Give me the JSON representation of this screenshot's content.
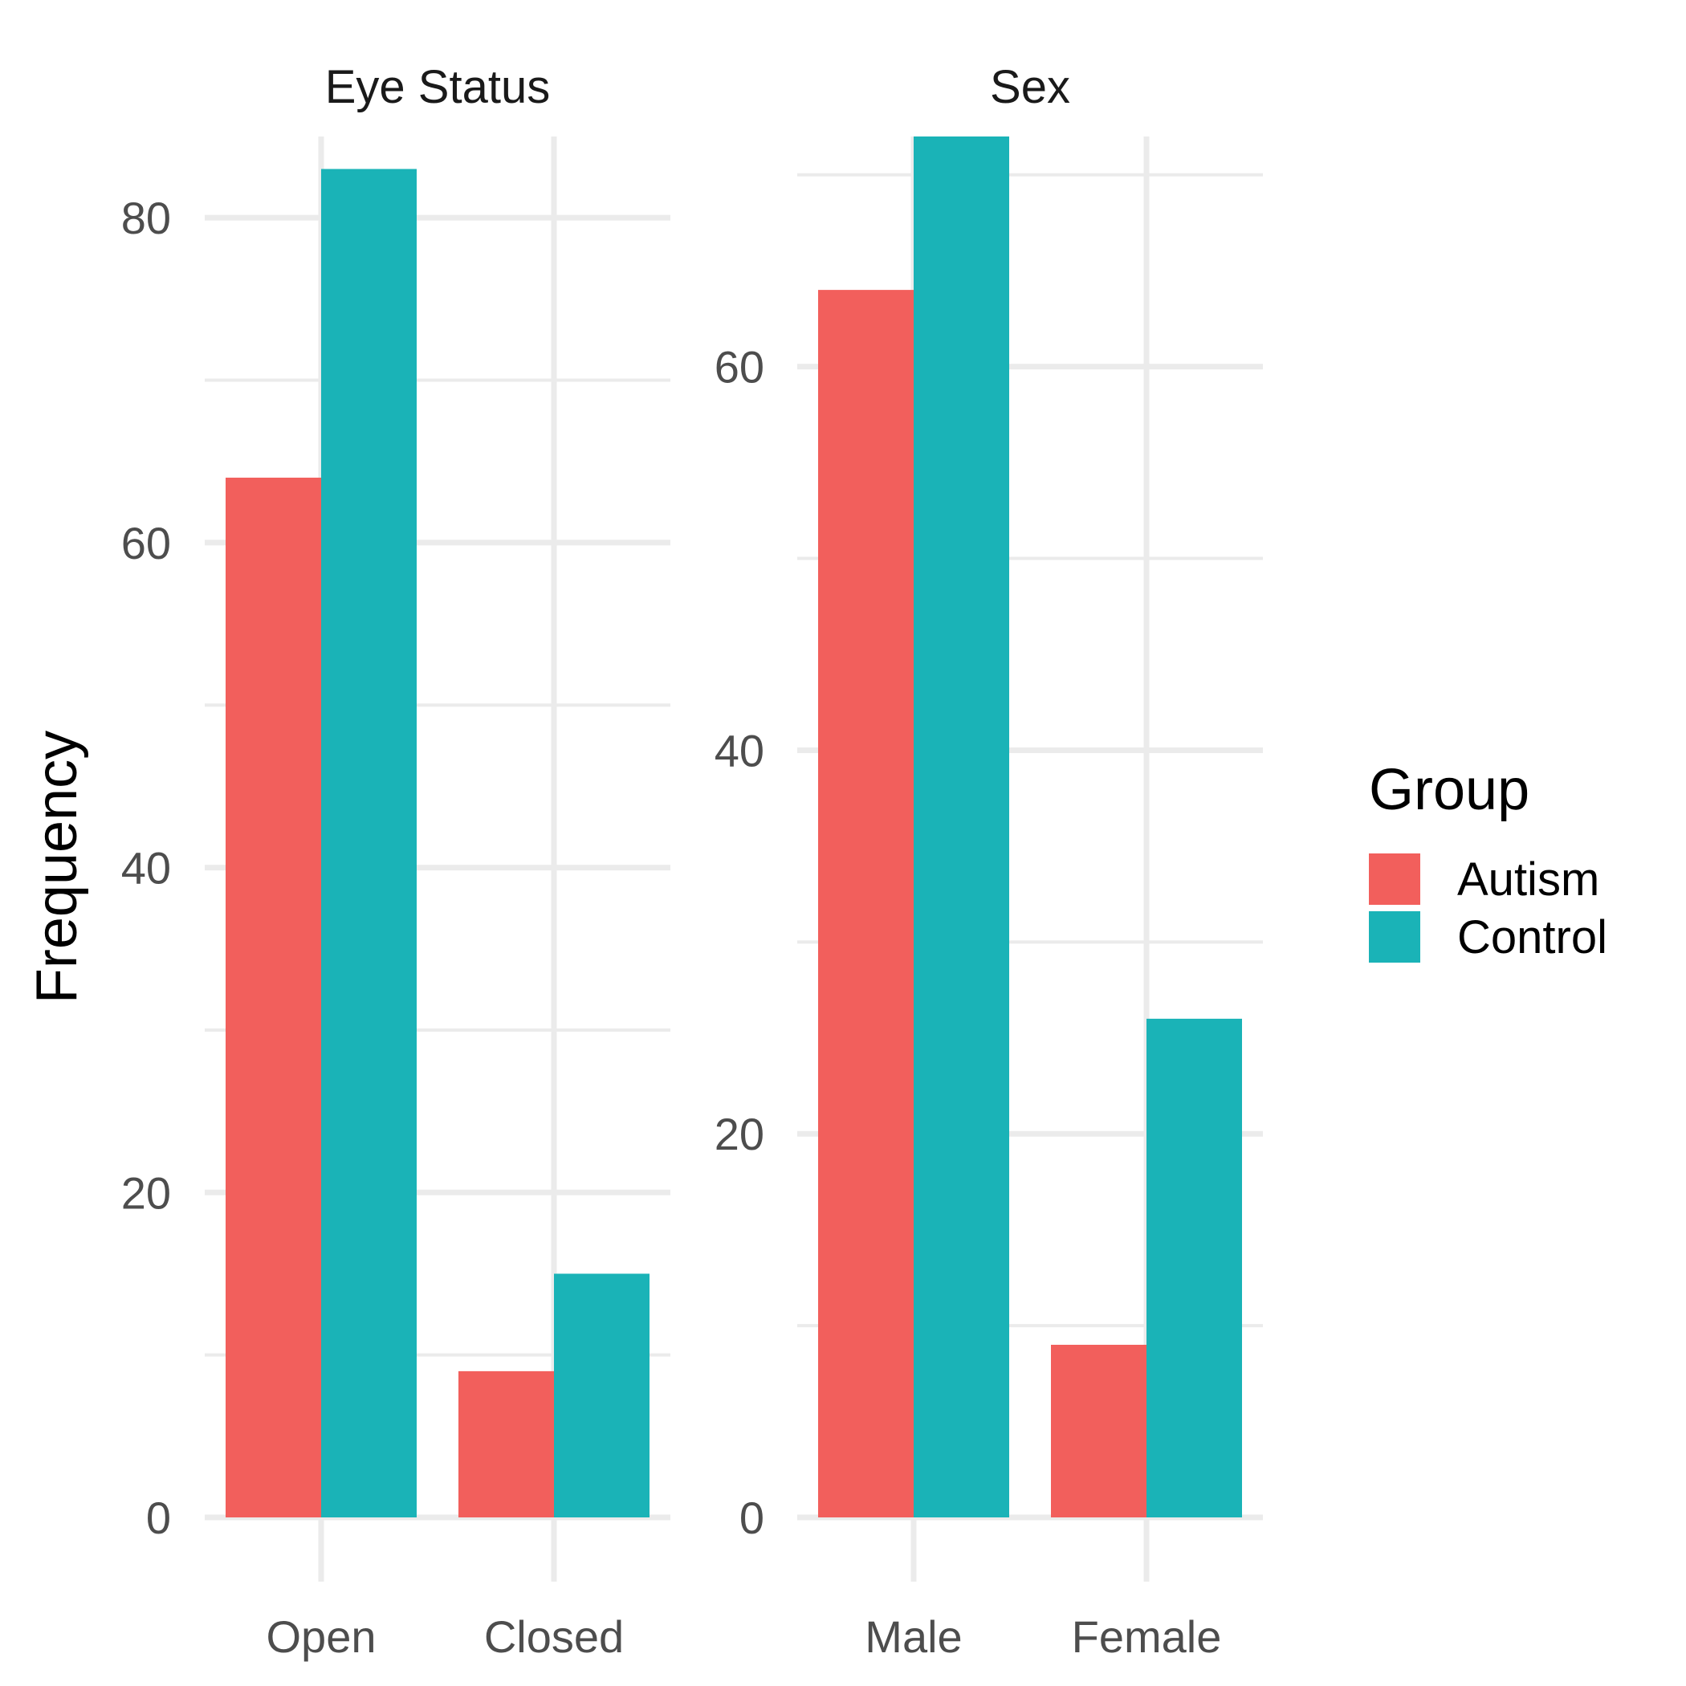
{
  "chart_data": [
    {
      "type": "bar",
      "title": "Eye Status",
      "categories": [
        "Open",
        "Closed"
      ],
      "series": [
        {
          "name": "Autism",
          "values": [
            64,
            9
          ]
        },
        {
          "name": "Control",
          "values": [
            83,
            15
          ]
        }
      ],
      "ylabel": "Frequency",
      "ylim": [
        0,
        85
      ],
      "yticks": [
        "0",
        "20",
        "40",
        "60",
        "80"
      ],
      "grid": true
    },
    {
      "type": "bar",
      "title": "Sex",
      "categories": [
        "Male",
        "Female"
      ],
      "series": [
        {
          "name": "Autism",
          "values": [
            64,
            9
          ]
        },
        {
          "name": "Control",
          "values": [
            72,
            26
          ]
        }
      ],
      "ylim": [
        0,
        72
      ],
      "yticks": [
        "0",
        "20",
        "40",
        "60"
      ],
      "grid": true
    }
  ],
  "shared": {
    "ylabel": "Frequency",
    "legend_title": "Group",
    "legend_position": "right",
    "legend": [
      {
        "name": "Autism",
        "color": "#F25F5C"
      },
      {
        "name": "Control",
        "color": "#1AB3B7"
      }
    ],
    "grid_color": "#EBEBEB"
  }
}
